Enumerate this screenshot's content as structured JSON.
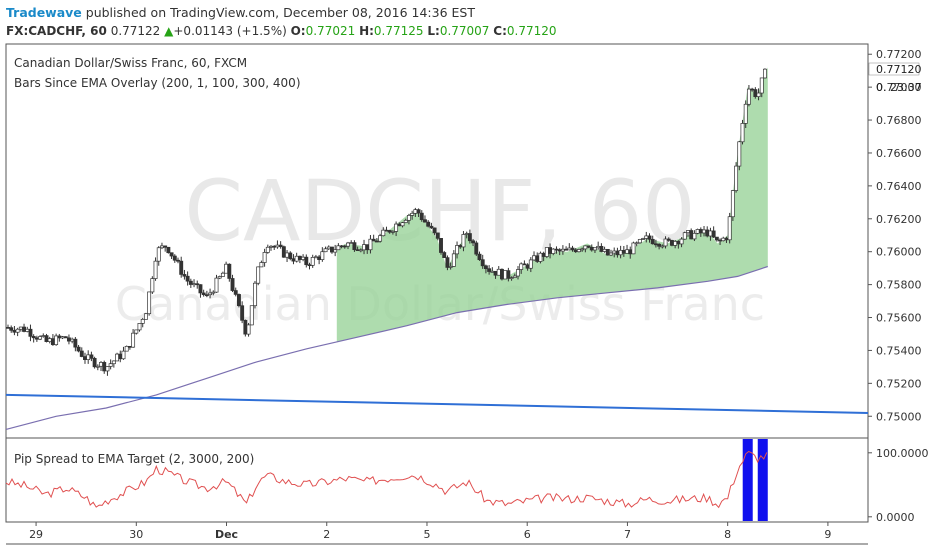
{
  "header": {
    "author": "Tradewave",
    "published_text": " published on TradingView.com, December 08, 2016 14:36 EST",
    "symbol": "FX:CADCHF, 60",
    "last": "0.77122",
    "change_arrow": "▲",
    "change": "+0.01143 (+1.5%)",
    "o_label": "O:",
    "o_value": "0.77021",
    "h_label": "H:",
    "h_value": "0.77125",
    "l_label": "L:",
    "l_value": "0.77007",
    "c_label": "C:",
    "c_value": "0.77120"
  },
  "main_pane": {
    "title": "Canadian Dollar/Swiss Franc, 60, FXCM",
    "indicator": "Bars Since EMA Overlay (200, 1, 100, 300, 400)",
    "watermark_symbol": "CADCHF, 60",
    "watermark_name": "Canadian Dollar/Swiss Franc"
  },
  "lower_pane": {
    "title": "Pip Spread to EMA Target (2, 3000, 200)"
  },
  "colors": {
    "up_candle": "#ffffff",
    "down_candle": "#333333",
    "ema": "#7a6fb0",
    "trendline": "#2f6fd6",
    "fill": "#9ad39a",
    "spread_line": "#e05050",
    "signal_bar": "#1010ee"
  },
  "price_label": {
    "price": "0.77120",
    "countdown": "23:37"
  },
  "chart_data": [
    {
      "type": "candlestick",
      "title": "Canadian Dollar/Swiss Franc, 60, FXCM",
      "ylim": [
        0.7488,
        0.7725
      ],
      "y_ticks": [
        "0.77200",
        "0.77000",
        "0.76800",
        "0.76600",
        "0.76400",
        "0.76200",
        "0.76000",
        "0.75800",
        "0.75600",
        "0.75400",
        "0.75200",
        "0.75000"
      ],
      "x_ticks": [
        {
          "label": "29",
          "x": 0.3
        },
        {
          "label": "30",
          "x": 1.3
        },
        {
          "label": "Dec",
          "x": 2.2
        },
        {
          "label": "2",
          "x": 3.2
        },
        {
          "label": "5",
          "x": 4.2
        },
        {
          "label": "6",
          "x": 5.2
        },
        {
          "label": "7",
          "x": 6.2
        },
        {
          "label": "8",
          "x": 7.2
        },
        {
          "label": "9",
          "x": 8.2
        }
      ],
      "xlim": [
        0,
        8.6
      ],
      "close_path": [
        [
          0.0,
          0.7554
        ],
        [
          0.2,
          0.7553
        ],
        [
          0.4,
          0.7545
        ],
        [
          0.6,
          0.7548
        ],
        [
          0.8,
          0.7535
        ],
        [
          1.0,
          0.753
        ],
        [
          1.2,
          0.754
        ],
        [
          1.4,
          0.7565
        ],
        [
          1.5,
          0.76
        ],
        [
          1.6,
          0.7604
        ],
        [
          1.8,
          0.7583
        ],
        [
          2.0,
          0.7572
        ],
        [
          2.2,
          0.759
        ],
        [
          2.4,
          0.755
        ],
        [
          2.5,
          0.7585
        ],
        [
          2.6,
          0.7606
        ],
        [
          2.8,
          0.7598
        ],
        [
          3.0,
          0.7593
        ],
        [
          3.2,
          0.76
        ],
        [
          3.4,
          0.7605
        ],
        [
          3.6,
          0.7603
        ],
        [
          3.8,
          0.7612
        ],
        [
          4.0,
          0.7622
        ],
        [
          4.1,
          0.7625
        ],
        [
          4.3,
          0.7608
        ],
        [
          4.4,
          0.759
        ],
        [
          4.6,
          0.7612
        ],
        [
          4.7,
          0.76
        ],
        [
          4.8,
          0.759
        ],
        [
          5.0,
          0.7585
        ],
        [
          5.2,
          0.7592
        ],
        [
          5.4,
          0.76
        ],
        [
          5.6,
          0.76
        ],
        [
          5.8,
          0.7605
        ],
        [
          6.0,
          0.7598
        ],
        [
          6.2,
          0.76
        ],
        [
          6.4,
          0.7608
        ],
        [
          6.6,
          0.7605
        ],
        [
          6.8,
          0.761
        ],
        [
          7.0,
          0.7612
        ],
        [
          7.1,
          0.7605
        ],
        [
          7.2,
          0.761
        ],
        [
          7.3,
          0.766
        ],
        [
          7.4,
          0.77
        ],
        [
          7.5,
          0.7695
        ],
        [
          7.55,
          0.7705
        ],
        [
          7.6,
          0.7712
        ]
      ],
      "ema_path": [
        [
          0.0,
          0.7492
        ],
        [
          0.5,
          0.75
        ],
        [
          1.0,
          0.7505
        ],
        [
          1.5,
          0.7513
        ],
        [
          2.0,
          0.7523
        ],
        [
          2.5,
          0.7533
        ],
        [
          3.0,
          0.7541
        ],
        [
          3.5,
          0.7548
        ],
        [
          4.0,
          0.7555
        ],
        [
          4.5,
          0.7563
        ],
        [
          5.0,
          0.7568
        ],
        [
          5.5,
          0.7572
        ],
        [
          6.0,
          0.7575
        ],
        [
          6.5,
          0.7578
        ],
        [
          7.0,
          0.7582
        ],
        [
          7.3,
          0.7585
        ],
        [
          7.6,
          0.7591
        ]
      ],
      "fill_range": [
        3.3,
        7.6
      ],
      "trendline": [
        [
          0.0,
          0.7513
        ],
        [
          8.6,
          0.7502
        ]
      ]
    },
    {
      "type": "line",
      "title": "Pip Spread to EMA Target (2, 3000, 200)",
      "ylim": [
        -5,
        120
      ],
      "y_ticks": [
        "100.0000",
        "0.0000"
      ],
      "line_path": [
        [
          0.0,
          55
        ],
        [
          0.2,
          48
        ],
        [
          0.4,
          35
        ],
        [
          0.6,
          45
        ],
        [
          0.8,
          30
        ],
        [
          0.9,
          15
        ],
        [
          1.0,
          25
        ],
        [
          1.2,
          40
        ],
        [
          1.4,
          55
        ],
        [
          1.5,
          75
        ],
        [
          1.6,
          70
        ],
        [
          1.8,
          55
        ],
        [
          2.0,
          45
        ],
        [
          2.2,
          55
        ],
        [
          2.4,
          20
        ],
        [
          2.5,
          50
        ],
        [
          2.6,
          65
        ],
        [
          2.8,
          55
        ],
        [
          3.0,
          50
        ],
        [
          3.2,
          55
        ],
        [
          3.4,
          60
        ],
        [
          3.6,
          55
        ],
        [
          3.8,
          60
        ],
        [
          4.0,
          65
        ],
        [
          4.1,
          65
        ],
        [
          4.3,
          50
        ],
        [
          4.4,
          40
        ],
        [
          4.6,
          55
        ],
        [
          4.7,
          40
        ],
        [
          4.8,
          25
        ],
        [
          5.0,
          20
        ],
        [
          5.2,
          25
        ],
        [
          5.4,
          30
        ],
        [
          5.6,
          28
        ],
        [
          5.8,
          30
        ],
        [
          6.0,
          25
        ],
        [
          6.2,
          20
        ],
        [
          6.4,
          28
        ],
        [
          6.6,
          25
        ],
        [
          6.8,
          28
        ],
        [
          7.0,
          30
        ],
        [
          7.1,
          20
        ],
        [
          7.2,
          30
        ],
        [
          7.3,
          75
        ],
        [
          7.4,
          100
        ],
        [
          7.5,
          92
        ],
        [
          7.6,
          96
        ]
      ],
      "signal_bars": [
        [
          7.35,
          7.45
        ],
        [
          7.5,
          7.6
        ]
      ]
    }
  ]
}
